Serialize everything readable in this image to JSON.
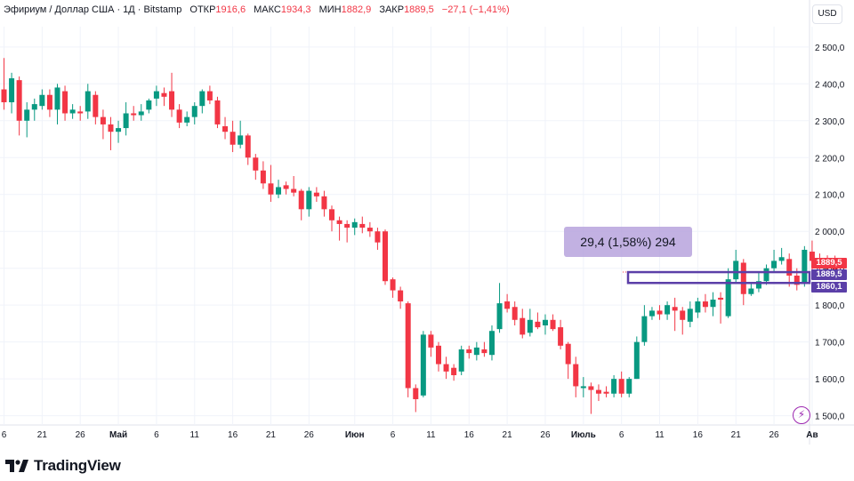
{
  "header": {
    "symbol_title": "Эфириум / Доллар США · 1Д · Bitstamp",
    "open_label": "ОТКР",
    "open_value": "1916,6",
    "high_label": "МАКС",
    "high_value": "1934,3",
    "low_label": "МИН",
    "low_value": "1882,9",
    "close_label": "ЗАКР",
    "close_value": "1889,5",
    "change_text": "−27,1 (−1,41%)"
  },
  "currency_button": "USD",
  "measure": {
    "label": "29,4 (1,58%) 294"
  },
  "price_tags": [
    {
      "text": "1889,5",
      "color": "#f23645"
    },
    {
      "text": "1889,5",
      "color": "#5b3fa8"
    },
    {
      "text": "1860,1",
      "color": "#5b3fa8"
    }
  ],
  "brand": {
    "name": "TradingView"
  },
  "colors": {
    "up": "#089981",
    "down": "#f23645",
    "measure": "#5b3fa8",
    "grid": "#f0f3fa",
    "axis_text": "#131722"
  },
  "chart_data": {
    "type": "candlestick",
    "title": "Эфириум / Доллар США · 1Д · Bitstamp",
    "y_axis": {
      "position": "right",
      "ylim": [
        1475,
        2555
      ],
      "ticks": [
        {
          "value": 2500,
          "label": "2 500,0"
        },
        {
          "value": 2400,
          "label": "2 400,0"
        },
        {
          "value": 2300,
          "label": "2 300,0"
        },
        {
          "value": 2200,
          "label": "2 200,0"
        },
        {
          "value": 2100,
          "label": "2 100,0"
        },
        {
          "value": 2000,
          "label": "2 000,0"
        },
        {
          "value": 1900,
          "label": "1 900,0"
        },
        {
          "value": 1800,
          "label": "1 800,0"
        },
        {
          "value": 1700,
          "label": "1 700,0"
        },
        {
          "value": 1600,
          "label": "1 600,0"
        },
        {
          "value": 1500,
          "label": "1 500,0"
        }
      ]
    },
    "x_axis": {
      "ticks": [
        {
          "index": 0,
          "label": "6"
        },
        {
          "index": 5,
          "label": "21"
        },
        {
          "index": 10,
          "label": "26"
        },
        {
          "index": 15,
          "label": "Май"
        },
        {
          "index": 20,
          "label": "6"
        },
        {
          "index": 25,
          "label": "11"
        },
        {
          "index": 30,
          "label": "16"
        },
        {
          "index": 35,
          "label": "21"
        },
        {
          "index": 40,
          "label": "26"
        },
        {
          "index": 46,
          "label": "Июн"
        },
        {
          "index": 51,
          "label": "6"
        },
        {
          "index": 56,
          "label": "11"
        },
        {
          "index": 61,
          "label": "16"
        },
        {
          "index": 66,
          "label": "21"
        },
        {
          "index": 71,
          "label": "26"
        },
        {
          "index": 76,
          "label": "Июль"
        },
        {
          "index": 81,
          "label": "6"
        },
        {
          "index": 86,
          "label": "11"
        },
        {
          "index": 91,
          "label": "16"
        },
        {
          "index": 96,
          "label": "21"
        },
        {
          "index": 101,
          "label": "26"
        },
        {
          "index": 106,
          "label": "Ав"
        }
      ]
    },
    "candles": [
      [
        2385,
        2350,
        2470,
        2330
      ],
      [
        2350,
        2415,
        2430,
        2320
      ],
      [
        2410,
        2300,
        2420,
        2260
      ],
      [
        2300,
        2330,
        2350,
        2255
      ],
      [
        2330,
        2345,
        2360,
        2300
      ],
      [
        2340,
        2370,
        2385,
        2330
      ],
      [
        2370,
        2330,
        2385,
        2310
      ],
      [
        2330,
        2390,
        2400,
        2290
      ],
      [
        2380,
        2320,
        2395,
        2300
      ],
      [
        2320,
        2330,
        2345,
        2305
      ],
      [
        2325,
        2320,
        2340,
        2300
      ],
      [
        2325,
        2380,
        2400,
        2305
      ],
      [
        2370,
        2310,
        2380,
        2290
      ],
      [
        2310,
        2290,
        2330,
        2250
      ],
      [
        2290,
        2270,
        2310,
        2220
      ],
      [
        2270,
        2280,
        2300,
        2240
      ],
      [
        2280,
        2320,
        2350,
        2260
      ],
      [
        2320,
        2315,
        2340,
        2300
      ],
      [
        2315,
        2325,
        2345,
        2300
      ],
      [
        2330,
        2355,
        2360,
        2320
      ],
      [
        2360,
        2380,
        2395,
        2340
      ],
      [
        2375,
        2365,
        2390,
        2340
      ],
      [
        2380,
        2330,
        2430,
        2310
      ],
      [
        2330,
        2295,
        2345,
        2280
      ],
      [
        2295,
        2310,
        2325,
        2285
      ],
      [
        2310,
        2340,
        2350,
        2290
      ],
      [
        2340,
        2380,
        2385,
        2320
      ],
      [
        2380,
        2355,
        2395,
        2345
      ],
      [
        2355,
        2290,
        2365,
        2280
      ],
      [
        2285,
        2270,
        2310,
        2250
      ],
      [
        2270,
        2235,
        2300,
        2215
      ],
      [
        2235,
        2260,
        2300,
        2225
      ],
      [
        2260,
        2200,
        2265,
        2180
      ],
      [
        2200,
        2165,
        2210,
        2140
      ],
      [
        2165,
        2130,
        2190,
        2115
      ],
      [
        2130,
        2100,
        2180,
        2080
      ],
      [
        2100,
        2120,
        2140,
        2090
      ],
      [
        2125,
        2115,
        2135,
        2100
      ],
      [
        2115,
        2105,
        2150,
        2095
      ],
      [
        2110,
        2060,
        2115,
        2030
      ],
      [
        2060,
        2110,
        2120,
        2040
      ],
      [
        2105,
        2095,
        2120,
        2080
      ],
      [
        2095,
        2060,
        2110,
        2040
      ],
      [
        2060,
        2030,
        2070,
        2000
      ],
      [
        2030,
        2020,
        2040,
        1975
      ],
      [
        2020,
        2010,
        2030,
        1970
      ],
      [
        2010,
        2025,
        2035,
        1990
      ],
      [
        2020,
        2010,
        2040,
        1995
      ],
      [
        2010,
        2000,
        2025,
        1985
      ],
      [
        2000,
        1970,
        2010,
        1950
      ],
      [
        2000,
        1865,
        2005,
        1855
      ],
      [
        1870,
        1840,
        1875,
        1820
      ],
      [
        1840,
        1810,
        1850,
        1790
      ],
      [
        1805,
        1575,
        1810,
        1550
      ],
      [
        1575,
        1545,
        1585,
        1510
      ],
      [
        1555,
        1720,
        1730,
        1550
      ],
      [
        1720,
        1685,
        1730,
        1660
      ],
      [
        1690,
        1640,
        1700,
        1620
      ],
      [
        1640,
        1620,
        1660,
        1600
      ],
      [
        1630,
        1610,
        1640,
        1595
      ],
      [
        1620,
        1680,
        1690,
        1610
      ],
      [
        1680,
        1670,
        1690,
        1655
      ],
      [
        1665,
        1685,
        1700,
        1650
      ],
      [
        1680,
        1670,
        1700,
        1660
      ],
      [
        1665,
        1730,
        1745,
        1650
      ],
      [
        1735,
        1805,
        1860,
        1725
      ],
      [
        1810,
        1790,
        1830,
        1780
      ],
      [
        1795,
        1760,
        1810,
        1745
      ],
      [
        1765,
        1720,
        1790,
        1710
      ],
      [
        1725,
        1760,
        1790,
        1715
      ],
      [
        1755,
        1740,
        1780,
        1735
      ],
      [
        1745,
        1760,
        1775,
        1720
      ],
      [
        1760,
        1735,
        1775,
        1730
      ],
      [
        1740,
        1690,
        1760,
        1680
      ],
      [
        1695,
        1640,
        1700,
        1600
      ],
      [
        1640,
        1580,
        1660,
        1550
      ],
      [
        1575,
        1580,
        1605,
        1550
      ],
      [
        1580,
        1570,
        1590,
        1505
      ],
      [
        1570,
        1560,
        1585,
        1540
      ],
      [
        1565,
        1560,
        1580,
        1550
      ],
      [
        1560,
        1600,
        1610,
        1550
      ],
      [
        1600,
        1560,
        1620,
        1550
      ],
      [
        1560,
        1600,
        1605,
        1550
      ],
      [
        1600,
        1700,
        1715,
        1600
      ],
      [
        1700,
        1770,
        1800,
        1690
      ],
      [
        1770,
        1785,
        1795,
        1760
      ],
      [
        1785,
        1775,
        1800,
        1760
      ],
      [
        1775,
        1800,
        1810,
        1760
      ],
      [
        1795,
        1785,
        1820,
        1730
      ],
      [
        1785,
        1760,
        1795,
        1720
      ],
      [
        1755,
        1790,
        1810,
        1740
      ],
      [
        1780,
        1810,
        1820,
        1765
      ],
      [
        1810,
        1795,
        1830,
        1780
      ],
      [
        1795,
        1815,
        1835,
        1770
      ],
      [
        1820,
        1815,
        1835,
        1750
      ],
      [
        1770,
        1870,
        1900,
        1765
      ],
      [
        1870,
        1920,
        1950,
        1860
      ],
      [
        1915,
        1830,
        1925,
        1800
      ],
      [
        1830,
        1845,
        1860,
        1825
      ],
      [
        1845,
        1865,
        1890,
        1835
      ],
      [
        1865,
        1900,
        1910,
        1855
      ],
      [
        1900,
        1920,
        1950,
        1890
      ],
      [
        1920,
        1930,
        1955,
        1910
      ],
      [
        1925,
        1880,
        1940,
        1850
      ],
      [
        1880,
        1855,
        1900,
        1840
      ],
      [
        1860,
        1950,
        1960,
        1850
      ],
      [
        1945,
        1920,
        1975,
        1880
      ],
      [
        1915,
        1905,
        1940,
        1870
      ],
      [
        1910,
        1900,
        1935,
        1880
      ],
      [
        1916.6,
        1889.5,
        1934.3,
        1882.9
      ]
    ],
    "last_price": 1889.5,
    "measure_range": {
      "from": 1860.1,
      "to": 1889.5,
      "label": "29,4 (1,58%) 294"
    }
  }
}
